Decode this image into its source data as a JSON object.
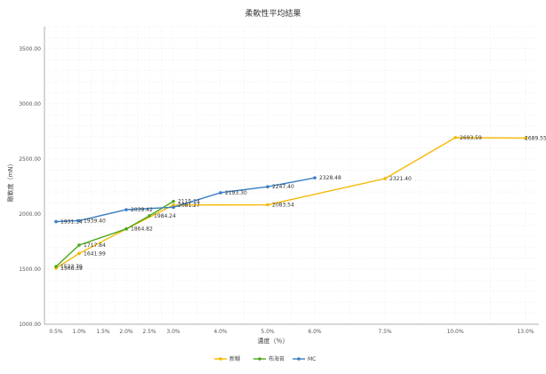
{
  "chart_data": {
    "type": "line",
    "title": "柔軟性平均結果",
    "xlabel": "濃度（％）",
    "ylabel": "剛軟度（mN）",
    "xlim": [
      0,
      13.0
    ],
    "ylim": [
      1000,
      3700
    ],
    "x_ticks": [
      {
        "value": 0.5,
        "label": "0.5%"
      },
      {
        "value": 1.0,
        "label": "1.0%"
      },
      {
        "value": 1.5,
        "label": "1.5%"
      },
      {
        "value": 2.0,
        "label": "2.0%"
      },
      {
        "value": 2.5,
        "label": "2.5%"
      },
      {
        "value": 3.0,
        "label": "3.0%"
      },
      {
        "value": 4.0,
        "label": "4.0%"
      },
      {
        "value": 5.0,
        "label": "5.0%"
      },
      {
        "value": 6.0,
        "label": "6.0%"
      },
      {
        "value": 7.5,
        "label": "7.5%"
      },
      {
        "value": 10.0,
        "label": "10.0%"
      },
      {
        "value": 13.0,
        "label": "13.0%"
      }
    ],
    "y_ticks": [
      {
        "value": 1000,
        "label": "1000.00"
      },
      {
        "value": 1500,
        "label": "1500.00"
      },
      {
        "value": 2000,
        "label": "2000.00"
      },
      {
        "value": 2500,
        "label": "2500.00"
      },
      {
        "value": 3000,
        "label": "3000.00"
      },
      {
        "value": 3500,
        "label": "3500.00"
      }
    ],
    "grid": true,
    "legend": "bottom",
    "series": [
      {
        "name": "新糊",
        "color": "#F5B800",
        "points": [
          {
            "x": 0.5,
            "y": 1508.39,
            "label": "1508.39"
          },
          {
            "x": 1.0,
            "y": 1641.99,
            "label": "1641.99"
          },
          {
            "x": 2.0,
            "y": 1864.82,
            "label": "1864.82"
          },
          {
            "x": 3.0,
            "y": 2081.27,
            "label": "2081.27"
          },
          {
            "x": 5.0,
            "y": 2083.54,
            "label": "2083.54"
          },
          {
            "x": 7.5,
            "y": 2321.4,
            "label": "2321.40"
          },
          {
            "x": 10.0,
            "y": 2693.59,
            "label": "2693.59"
          },
          {
            "x": 13.0,
            "y": 2689.55,
            "label": "2689.55"
          }
        ]
      },
      {
        "name": "布海苔",
        "color": "#4CA81B",
        "points": [
          {
            "x": 0.5,
            "y": 1523.79,
            "label": "1523.79"
          },
          {
            "x": 1.0,
            "y": 1717.84,
            "label": "1717.84"
          },
          {
            "x": 2.0,
            "y": 1864.82,
            "label": ""
          },
          {
            "x": 2.5,
            "y": 1984.24,
            "label": "1984.24"
          },
          {
            "x": 3.0,
            "y": 2115.14,
            "label": "2115.14"
          }
        ]
      },
      {
        "name": "MC",
        "color": "#3A7FC4",
        "points": [
          {
            "x": 0.5,
            "y": 1931.14,
            "label": "1931.14"
          },
          {
            "x": 1.0,
            "y": 1939.4,
            "label": "1939.40"
          },
          {
            "x": 2.0,
            "y": 2039.42,
            "label": "2039.42"
          },
          {
            "x": 3.0,
            "y": 2061.27,
            "label": ""
          },
          {
            "x": 4.0,
            "y": 2193.3,
            "label": "2193.30"
          },
          {
            "x": 5.0,
            "y": 2247.4,
            "label": "2247.40"
          },
          {
            "x": 6.0,
            "y": 2328.48,
            "label": "2328.48"
          }
        ]
      }
    ]
  }
}
